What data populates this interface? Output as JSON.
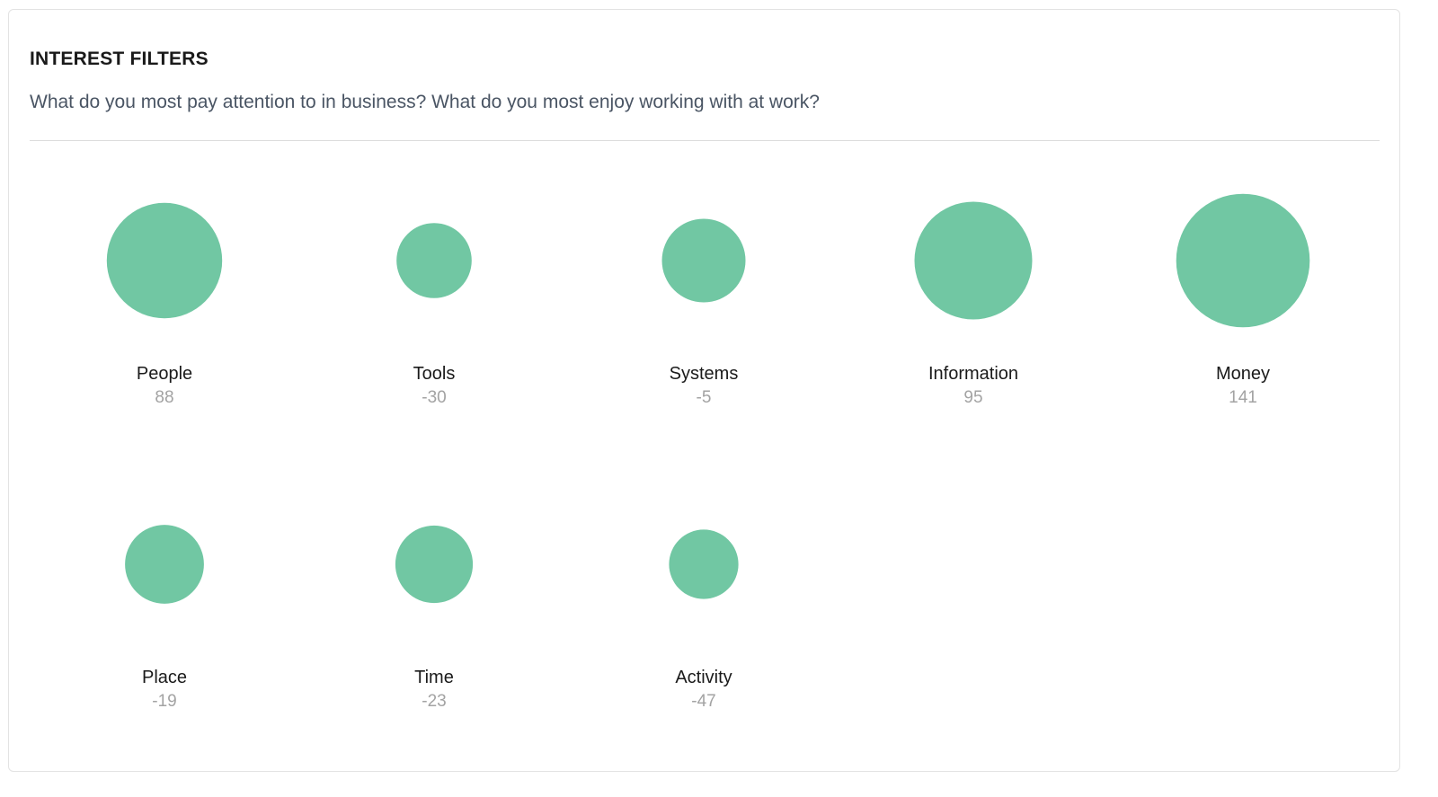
{
  "header": {
    "title": "INTEREST FILTERS",
    "subtitle": "What do you most pay attention to in business? What do you most enjoy working with at work?"
  },
  "colors": {
    "bubble": "#71c7a3"
  },
  "chart_data": {
    "type": "bubble",
    "title": "INTEREST FILTERS",
    "subtitle": "What do you most pay attention to in business? What do you most enjoy working with at work?",
    "items": [
      {
        "label": "People",
        "value": 88
      },
      {
        "label": "Tools",
        "value": -30
      },
      {
        "label": "Systems",
        "value": -5
      },
      {
        "label": "Information",
        "value": 95
      },
      {
        "label": "Money",
        "value": 141
      },
      {
        "label": "Place",
        "value": -19
      },
      {
        "label": "Time",
        "value": -23
      },
      {
        "label": "Activity",
        "value": -47
      }
    ]
  }
}
